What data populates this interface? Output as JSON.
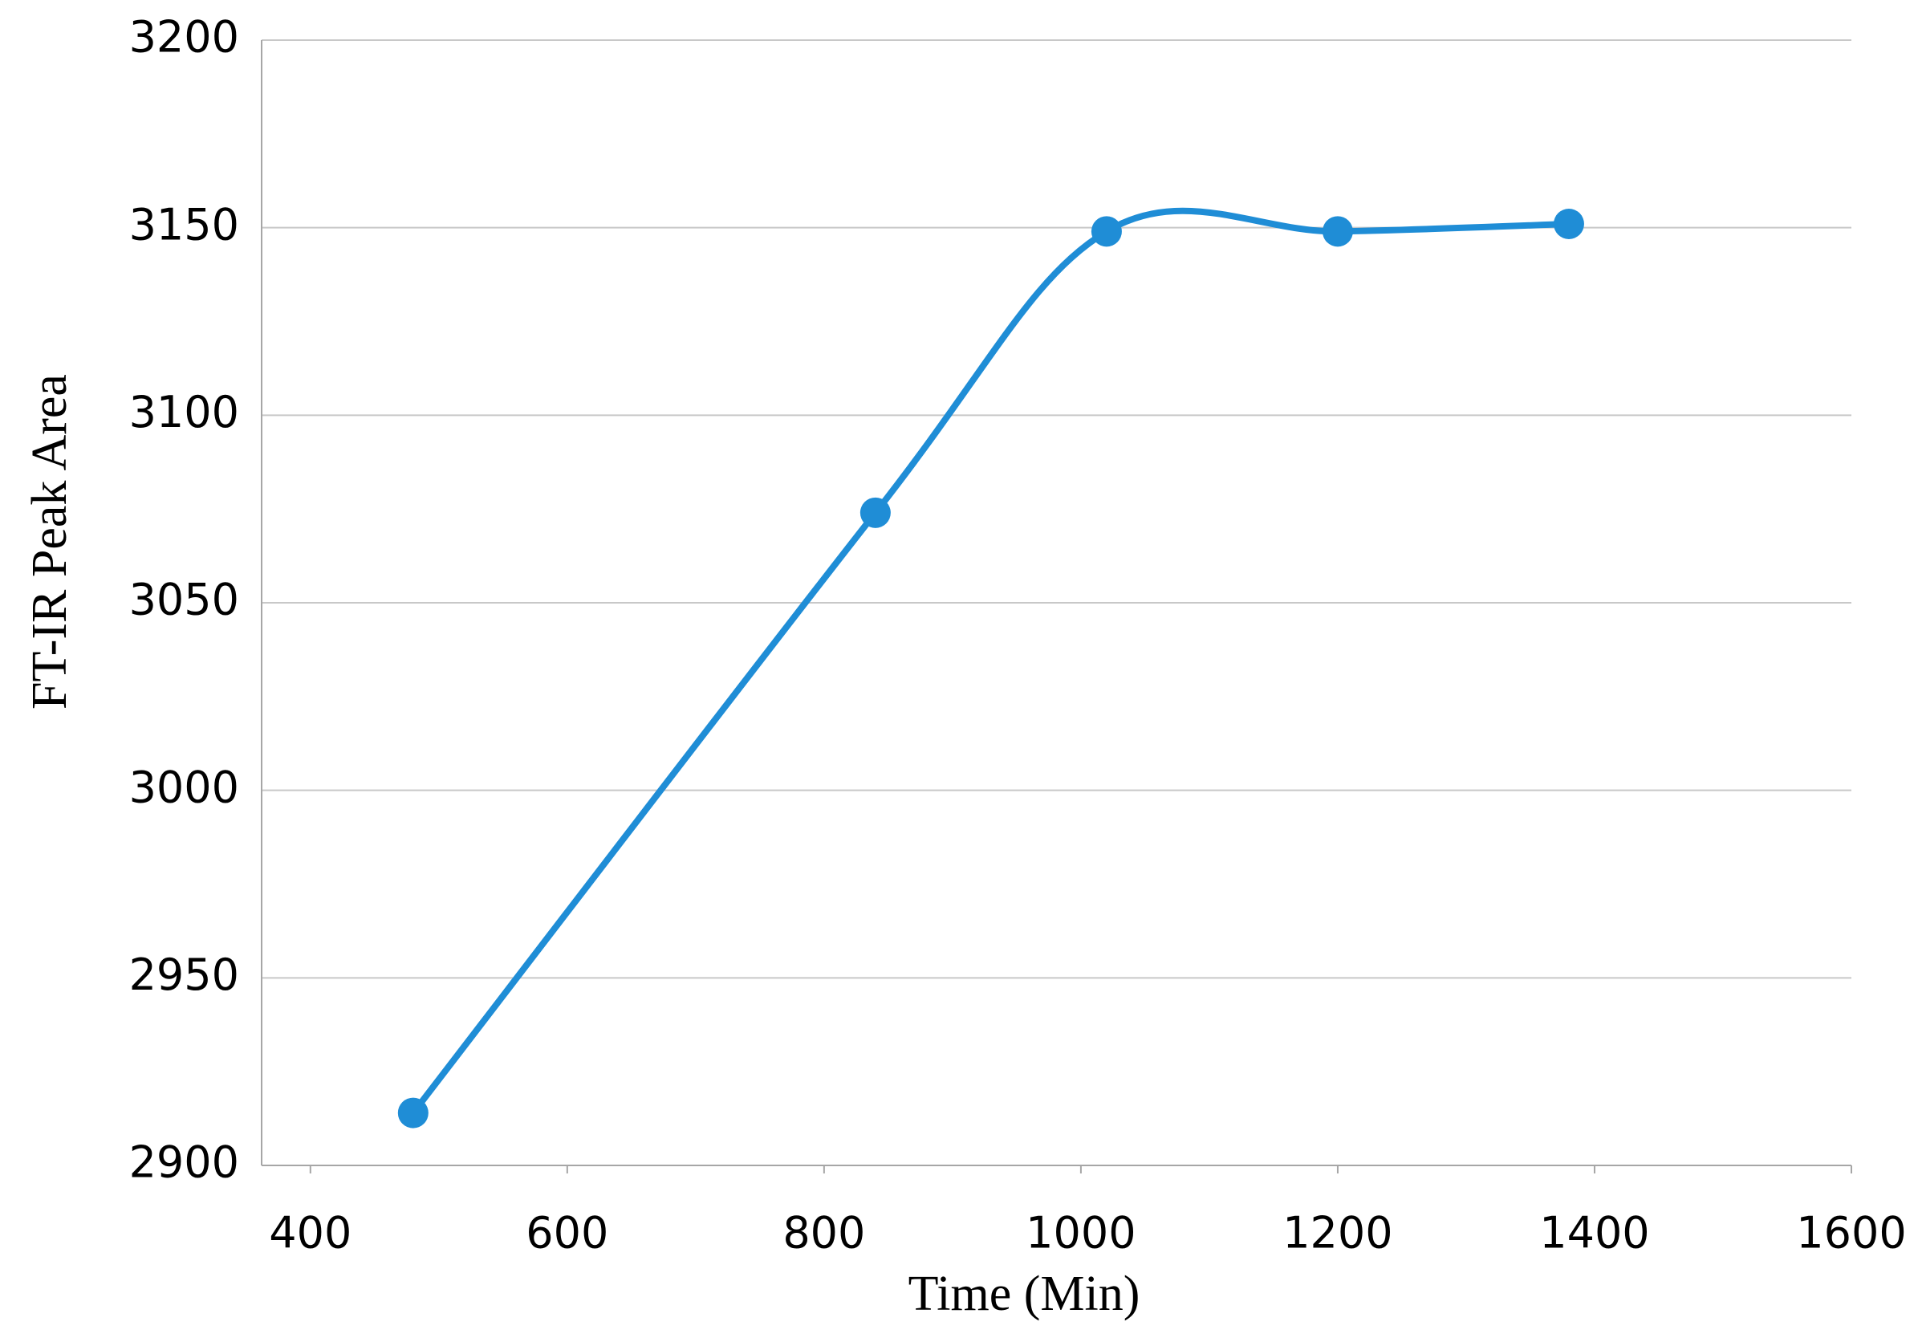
{
  "chart_data": {
    "type": "line",
    "x_label": "Time (Min)",
    "y_label": "FT-IR Peak Area",
    "x": [
      480,
      840,
      1020,
      1200,
      1380
    ],
    "values": [
      2914,
      3074,
      3149,
      3149,
      3151
    ],
    "color": "#1f8dd6",
    "smooth": true,
    "markers": true,
    "xlim": [
      362,
      1600
    ],
    "xticks": [
      400,
      600,
      800,
      1000,
      1200,
      1400,
      1600
    ],
    "ylim": [
      2900,
      3200
    ],
    "yticks": [
      2900,
      2950,
      3000,
      3050,
      3100,
      3150,
      3200
    ],
    "grid": true
  }
}
